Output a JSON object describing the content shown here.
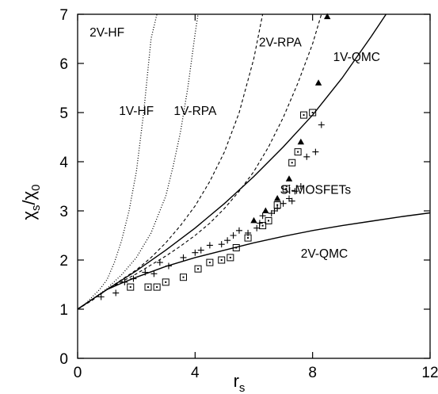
{
  "chart_data": {
    "type": "line",
    "xlabel": "r",
    "xlabel_sub": "s",
    "ylabel_parts": [
      "χ",
      "s",
      "/χ",
      "0"
    ],
    "xlim": [
      0,
      12
    ],
    "ylim": [
      0,
      7
    ],
    "xticks": [
      0,
      4,
      8,
      12
    ],
    "yticks": [
      0,
      1,
      2,
      3,
      4,
      5,
      6,
      7
    ],
    "grid": false,
    "legend": "none",
    "series": [
      {
        "name": "2V-HF",
        "style": "dotted",
        "x": [
          0,
          0.25,
          0.5,
          0.75,
          1,
          1.25,
          1.5,
          1.75,
          2,
          2.25,
          2.5,
          2.7
        ],
        "y": [
          1,
          1.1,
          1.25,
          1.4,
          1.6,
          1.95,
          2.4,
          3.0,
          3.8,
          5.0,
          6.5,
          7.0
        ]
      },
      {
        "name": "1V-HF",
        "style": "dotted",
        "x": [
          0,
          0.5,
          1,
          1.5,
          2,
          2.5,
          3,
          3.25,
          3.5,
          3.75,
          4,
          4.1
        ],
        "y": [
          1,
          1.2,
          1.42,
          1.7,
          2.05,
          2.55,
          3.3,
          3.9,
          4.6,
          5.5,
          6.6,
          7.0
        ]
      },
      {
        "name": "1V-RPA",
        "style": "dashed",
        "x": [
          0,
          0.5,
          1,
          1.5,
          2,
          2.5,
          3,
          3.5,
          4,
          4.5,
          5,
          5.5,
          6,
          6.3
        ],
        "y": [
          1,
          1.2,
          1.4,
          1.6,
          1.8,
          2.05,
          2.35,
          2.7,
          3.1,
          3.6,
          4.2,
          5.0,
          6.1,
          7.0
        ]
      },
      {
        "name": "2V-RPA",
        "style": "dashed",
        "x": [
          0,
          0.5,
          1,
          1.5,
          2,
          2.5,
          3,
          3.5,
          4,
          4.5,
          5,
          5.5,
          6,
          6.5,
          7,
          7.5,
          8,
          8.3
        ],
        "y": [
          1,
          1.18,
          1.4,
          1.56,
          1.72,
          1.9,
          2.08,
          2.28,
          2.5,
          2.75,
          3.05,
          3.4,
          3.8,
          4.3,
          4.9,
          5.6,
          6.4,
          7.0
        ]
      },
      {
        "name": "1V-QMC",
        "style": "solid",
        "x": [
          0,
          0.5,
          1,
          2,
          3,
          4,
          5,
          6,
          7,
          8,
          9,
          10,
          10.5
        ],
        "y": [
          1,
          1.2,
          1.4,
          1.78,
          2.2,
          2.65,
          3.15,
          3.7,
          4.3,
          4.95,
          5.7,
          6.55,
          7.0
        ]
      },
      {
        "name": "2V-QMC",
        "style": "solid",
        "x": [
          0,
          0.5,
          1,
          1.5,
          2,
          3,
          4,
          5,
          6,
          7,
          8,
          9,
          10,
          11,
          12
        ],
        "y": [
          1,
          1.2,
          1.4,
          1.53,
          1.65,
          1.87,
          2.05,
          2.2,
          2.35,
          2.48,
          2.6,
          2.7,
          2.79,
          2.88,
          2.96
        ]
      }
    ],
    "curve_labels": [
      {
        "text": "2V-HF",
        "x": 1.0,
        "y": 6.55
      },
      {
        "text": "1V-HF",
        "x": 2.0,
        "y": 4.95
      },
      {
        "text": "1V-RPA",
        "x": 4.0,
        "y": 4.95
      },
      {
        "text": "2V-RPA",
        "x": 6.9,
        "y": 6.35
      },
      {
        "text": "1V-QMC",
        "x": 9.5,
        "y": 6.05
      },
      {
        "text": "Si-MOSFETs",
        "x": 8.1,
        "y": 3.35
      },
      {
        "text": "2V-QMC",
        "x": 8.4,
        "y": 2.05
      }
    ],
    "scatter_sets": [
      {
        "marker": "plus",
        "x": [
          0.8,
          1.3,
          1.6,
          1.9,
          2.3,
          2.6,
          2.8,
          3.1,
          3.6,
          4.0,
          4.2,
          4.5,
          4.9,
          5.1,
          5.3,
          5.5,
          5.8,
          6.1,
          6.2,
          6.3,
          6.6,
          6.7,
          6.8,
          7.0,
          7.2,
          7.3,
          7.4,
          7.6,
          7.8,
          8.1,
          8.3
        ],
        "y": [
          1.25,
          1.33,
          1.55,
          1.62,
          1.75,
          1.72,
          1.95,
          1.88,
          2.05,
          2.15,
          2.2,
          2.3,
          2.32,
          2.4,
          2.5,
          2.6,
          2.55,
          2.65,
          2.75,
          2.9,
          2.95,
          3.0,
          3.05,
          3.15,
          3.25,
          3.2,
          3.4,
          3.5,
          4.1,
          4.2,
          4.75
        ]
      },
      {
        "marker": "square",
        "x": [
          1.8,
          2.4,
          2.7,
          3.0,
          3.6,
          4.1,
          4.5,
          4.9,
          5.2,
          5.4,
          5.8,
          6.3,
          6.5,
          6.8,
          7.1,
          7.3,
          7.5,
          7.7,
          8.0
        ],
        "y": [
          1.45,
          1.45,
          1.45,
          1.55,
          1.65,
          1.82,
          1.95,
          2.0,
          2.05,
          2.25,
          2.45,
          2.7,
          2.8,
          3.12,
          3.45,
          3.98,
          4.2,
          4.95,
          5.0
        ]
      },
      {
        "marker": "triangle",
        "x": [
          6.0,
          6.4,
          6.8,
          7.2,
          7.6,
          8.2,
          8.5
        ],
        "y": [
          2.8,
          3.0,
          3.25,
          3.65,
          4.4,
          5.6,
          6.95
        ]
      }
    ]
  }
}
